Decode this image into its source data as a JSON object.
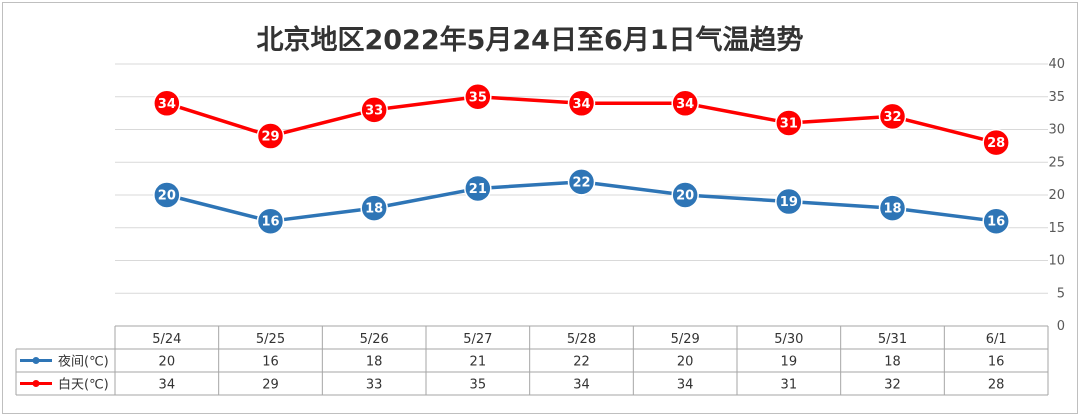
{
  "chart_data": {
    "type": "line",
    "title": "北京地区2022年5月24日至6月1日气温趋势",
    "categories": [
      "5/24",
      "5/25",
      "5/26",
      "5/27",
      "5/28",
      "5/29",
      "5/30",
      "5/31",
      "6/1"
    ],
    "series": [
      {
        "name": "夜间(℃)",
        "color": "#2e75b6",
        "values": [
          20,
          16,
          18,
          21,
          22,
          20,
          19,
          18,
          16
        ]
      },
      {
        "name": "白天(℃)",
        "color": "#ff0000",
        "values": [
          34,
          29,
          33,
          35,
          34,
          34,
          31,
          32,
          28
        ]
      }
    ],
    "ylim": [
      0,
      40
    ],
    "yticks": [
      0,
      5,
      10,
      15,
      20,
      25,
      30,
      35,
      40
    ],
    "ytick_labels": [
      "0",
      "5",
      "10",
      "15",
      "20",
      "25",
      "30",
      "35",
      "40"
    ],
    "y_axis_side": "right",
    "grid": true,
    "legend": "data-table",
    "data_labels": true
  }
}
